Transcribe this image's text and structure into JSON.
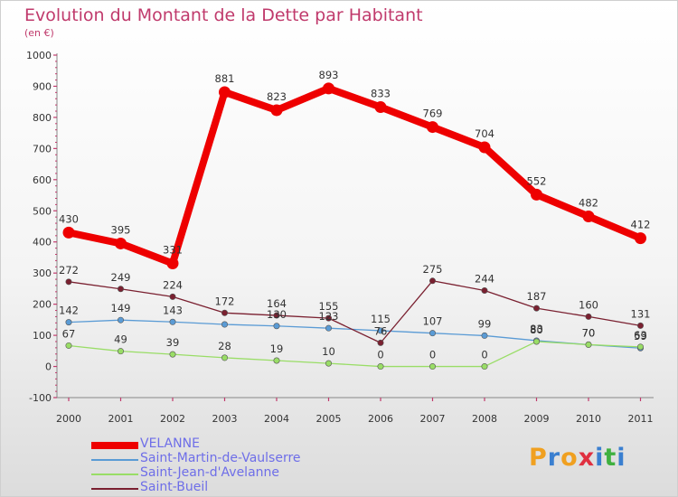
{
  "header": {
    "title": "Evolution du Montant de la Dette par Habitant",
    "subtitle": "(en €)"
  },
  "brand": {
    "letters": [
      "P",
      "r",
      "o",
      "x",
      "i",
      "t",
      "i"
    ],
    "colors": [
      "#f0a020",
      "#3a7fd0",
      "#f0a020",
      "#e03040",
      "#3a7fd0",
      "#40b040",
      "#3a7fd0"
    ]
  },
  "chart_data": {
    "type": "line",
    "title": "Evolution du Montant de la Dette par Habitant",
    "subtitle": "(en €)",
    "x": [
      "2000",
      "2001",
      "2002",
      "2003",
      "2004",
      "2005",
      "2006",
      "2007",
      "2008",
      "2009",
      "2010",
      "2011"
    ],
    "yticks": [
      "-100",
      "0",
      "100",
      "200",
      "300",
      "400",
      "500",
      "600",
      "700",
      "800",
      "900",
      "1000"
    ],
    "ylim": [
      -100,
      1000
    ],
    "grid": false,
    "legend_position": "bottom-left",
    "series": [
      {
        "name": "VELANNE",
        "color": "#ee0000",
        "values": [
          430,
          395,
          331,
          881,
          823,
          893,
          833,
          769,
          704,
          552,
          482,
          412
        ],
        "labels": [
          "430",
          "395",
          "331",
          "881",
          "823",
          "893",
          "833",
          "769",
          "704",
          "552",
          "482",
          "412"
        ]
      },
      {
        "name": "Saint-Martin-de-Vaulserre",
        "color": "#5a9bd5",
        "values": [
          142,
          149,
          143,
          135,
          130,
          123,
          115,
          107,
          99,
          83,
          70,
          59
        ],
        "labels": [
          "142",
          "149",
          "143",
          "",
          "130",
          "123",
          "115",
          "107",
          "99",
          "83",
          "70",
          "59"
        ]
      },
      {
        "name": "Saint-Jean-d'Avelanne",
        "color": "#99dd66",
        "values": [
          67,
          49,
          39,
          28,
          19,
          10,
          0,
          0,
          0,
          80,
          70,
          63
        ],
        "labels": [
          "67",
          "49",
          "39",
          "28",
          "19",
          "10",
          "0",
          "0",
          "0",
          "80",
          "70",
          "63"
        ]
      },
      {
        "name": "Saint-Bueil",
        "color": "#7a2030",
        "values": [
          272,
          249,
          224,
          172,
          164,
          155,
          76,
          275,
          244,
          187,
          160,
          131
        ],
        "labels": [
          "272",
          "249",
          "224",
          "172",
          "164",
          "155",
          "76",
          "275",
          "244",
          "187",
          "160",
          "131"
        ]
      }
    ]
  }
}
